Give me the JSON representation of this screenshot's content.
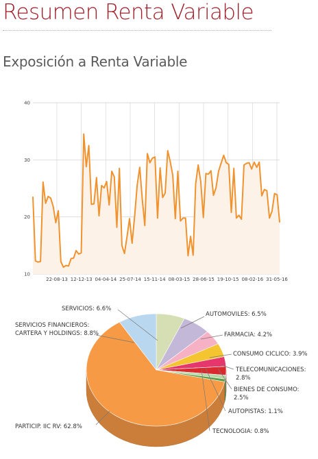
{
  "header": {
    "title": "Resumen Renta Variable",
    "subtitle": "Exposición a Renta Variable"
  },
  "colors": {
    "title": "#a0202a",
    "line": "#f0922e",
    "area": "#fdf2e8"
  },
  "chart_data": [
    {
      "type": "line",
      "title": "",
      "xlabel": "",
      "ylabel": "",
      "ylim": [
        10,
        40
      ],
      "yticks": [
        10,
        20,
        30,
        40
      ],
      "xtick_labels": [
        "22-08-13",
        "12-12-13",
        "04-04-14",
        "25-07-14",
        "15-11-14",
        "08-03-15",
        "28-06-15",
        "19-10-15",
        "08-02-16",
        "31-05-16"
      ],
      "grid": true,
      "series": [
        {
          "values": [
            23.5,
            12.3,
            12.1,
            12.2,
            26.1,
            22.4,
            23.6,
            23.3,
            21.8,
            19,
            21.1,
            12.2,
            11.2,
            11.5,
            11.4,
            12.7,
            12.8,
            14.1,
            13.5,
            13.7,
            34.5,
            28.8,
            32.5,
            22.2,
            22.3,
            26.9,
            20.2,
            25.5,
            25.1,
            26.2,
            22.1,
            28,
            27,
            18.2,
            28.5,
            15,
            13.6,
            16.5,
            19.7,
            15.4,
            20.2,
            25.6,
            28.7,
            23.1,
            18.5,
            31.1,
            29.5,
            30.3,
            30.5,
            19.8,
            28.6,
            23.4,
            24.2,
            31.6,
            29.7,
            27.3,
            19.7,
            28,
            19.3,
            19.8,
            19.8,
            13.2,
            16.6,
            13.3,
            25.8,
            29.1,
            26.2,
            19.9,
            27.6,
            27.5,
            28.1,
            23.8,
            25.1,
            28,
            29.4,
            30.8,
            29.5,
            29.2,
            20.8,
            28.5,
            19.8,
            20.3,
            19.6,
            29.1,
            29.4,
            29.5,
            28.4,
            29.6,
            28.7,
            29.6,
            23.7,
            24.8,
            24.6,
            19.8,
            21,
            24.1,
            23.9,
            19.1
          ]
        }
      ]
    },
    {
      "type": "pie",
      "title": "",
      "slices": [
        {
          "label": "SERVICIOS",
          "value": 6.6,
          "color": "#d6dfb4"
        },
        {
          "label": "AUTOMOVILES",
          "value": 6.5,
          "color": "#c4b8d8"
        },
        {
          "label": "FARMACIA",
          "value": 4.2,
          "color": "#f7b1c4"
        },
        {
          "label": "CONSUMO CICLICO",
          "value": 3.9,
          "color": "#f5c531"
        },
        {
          "label": "TELECOMUNICACIONES",
          "value": 2.8,
          "color": "#e5376b"
        },
        {
          "label": "BIENES DE CONSUMO",
          "value": 2.5,
          "color": "#d92a2f"
        },
        {
          "label": "AUTOPISTAS",
          "value": 1.1,
          "color": "#b8d8a8"
        },
        {
          "label": "TECNOLOGIA",
          "value": 0.8,
          "color": "#5b9f4a"
        },
        {
          "label": "PARTICIP. IIC RV",
          "value": 62.8,
          "color": "#f79a45"
        },
        {
          "label": "SERVICIOS FINANCIEROS: CARTERA Y HOLDINGS",
          "value": 8.8,
          "color": "#b9d7ee"
        }
      ],
      "annotations": [
        {
          "lines": [
            "SERVICIOS: 6.6%"
          ]
        },
        {
          "lines": [
            "AUTOMOVILES: 6.5%"
          ]
        },
        {
          "lines": [
            "FARMACIA: 4.2%"
          ]
        },
        {
          "lines": [
            "CONSUMO CICLICO: 3.9%"
          ]
        },
        {
          "lines": [
            "TELECOMUNICACIONES:",
            "2.8%"
          ]
        },
        {
          "lines": [
            "BIENES DE CONSUMO:",
            "2.5%"
          ]
        },
        {
          "lines": [
            "AUTOPISTAS: 1.1%"
          ]
        },
        {
          "lines": [
            "TECNOLOGIA: 0.8%"
          ]
        },
        {
          "lines": [
            "PARTICIP. IIC RV: 62.8%"
          ]
        },
        {
          "lines": [
            "SERVICIOS FINANCIEROS:",
            "CARTERA Y HOLDINGS: 8.8%"
          ]
        }
      ]
    }
  ]
}
